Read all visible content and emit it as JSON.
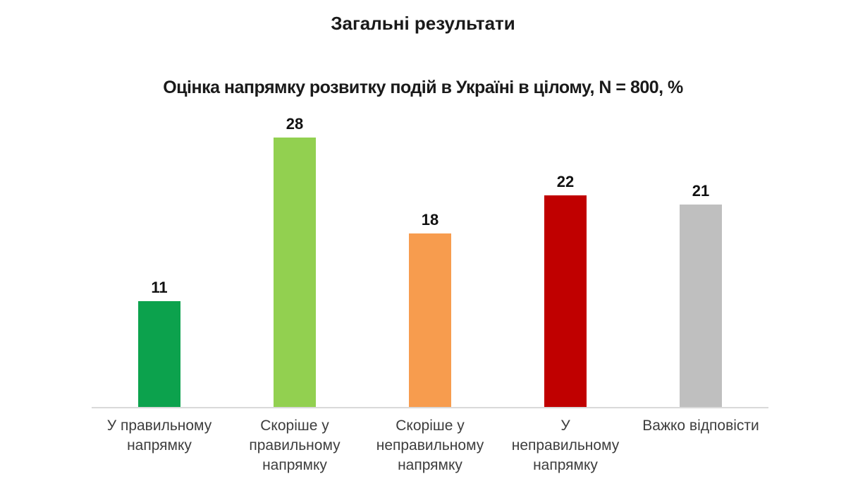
{
  "chart_data": {
    "type": "bar",
    "title": "Загальні результати",
    "subtitle": "Оцінка напрямку розвитку подій в Україні в цілому, N = 800, %",
    "sample_size_text": "N = 800",
    "unit": "%",
    "categories": [
      "У правильному напрямку",
      "Скоріше у правильному напрямку",
      "Скоріше у неправильному напрямку",
      "У неправильному напрямку",
      "Важко відповісти"
    ],
    "category_lines": [
      [
        "У правильному",
        "напрямку"
      ],
      [
        "Скоріше у",
        "правильному",
        "напрямку"
      ],
      [
        "Скоріше у",
        "неправильному",
        "напрямку"
      ],
      [
        "У",
        "неправильному",
        "напрямку"
      ],
      [
        "Важко відповісти"
      ]
    ],
    "values": [
      11,
      28,
      18,
      22,
      21
    ],
    "colors": [
      "#0CA24D",
      "#92D050",
      "#F79C4E",
      "#C00000",
      "#BFBFBF"
    ],
    "ylim": [
      0,
      28
    ],
    "grid": false,
    "legend": false,
    "axis_line_color": "#D9D9D9",
    "background": "#FFFFFF"
  }
}
